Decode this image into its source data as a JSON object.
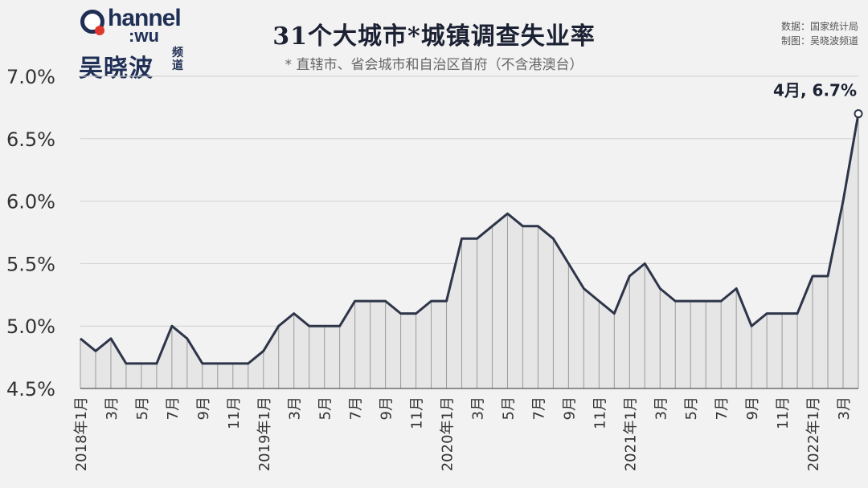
{
  "logo": {
    "wordmark": "hannel",
    "sub": ":wu",
    "cn": "吴晓波",
    "cn2": "频道"
  },
  "source": {
    "line1": "数据：国家统计局",
    "line2": "制图：吴晓波频道"
  },
  "colors": {
    "line": "#2e3549",
    "background": "#f2f2f2",
    "grid": "#d0d0d0",
    "logo_accent": "#e0362c"
  },
  "chart_data": {
    "type": "area",
    "title": "31个大城市*城镇调查失业率",
    "subtitle": "* 直辖市、省会城市和自治区首府（不含港澳台）",
    "ylim": [
      4.5,
      7.0
    ],
    "yticks": [
      4.5,
      5.0,
      5.5,
      6.0,
      6.5,
      7.0
    ],
    "ytick_labels": [
      "4.5%",
      "5.0%",
      "5.5%",
      "6.0%",
      "6.5%",
      "7.0%"
    ],
    "grid": "horizontal",
    "x": [
      "2018年1月",
      "2月",
      "3月",
      "4月",
      "5月",
      "6月",
      "7月",
      "8月",
      "9月",
      "10月",
      "11月",
      "12月",
      "2019年1月",
      "2月",
      "3月",
      "4月",
      "5月",
      "6月",
      "7月",
      "8月",
      "9月",
      "10月",
      "11月",
      "12月",
      "2020年1月",
      "2月",
      "3月",
      "4月",
      "5月",
      "6月",
      "7月",
      "8月",
      "9月",
      "10月",
      "11月",
      "12月",
      "2021年1月",
      "2月",
      "3月",
      "4月",
      "5月",
      "6月",
      "7月",
      "8月",
      "9月",
      "10月",
      "11月",
      "12月",
      "2022年1月",
      "2月",
      "3月",
      "4月"
    ],
    "xtick_labels": [
      "2018年1月",
      "",
      "3月",
      "",
      "5月",
      "",
      "7月",
      "",
      "9月",
      "",
      "11月",
      "",
      "2019年1月",
      "",
      "3月",
      "",
      "5月",
      "",
      "7月",
      "",
      "9月",
      "",
      "11月",
      "",
      "2020年1月",
      "",
      "3月",
      "",
      "5月",
      "",
      "7月",
      "",
      "9月",
      "",
      "11月",
      "",
      "2021年1月",
      "",
      "3月",
      "",
      "5月",
      "",
      "7月",
      "",
      "9月",
      "",
      "11月",
      "",
      "2022年1月",
      "",
      "3月",
      ""
    ],
    "series": [
      {
        "values": [
          4.9,
          4.8,
          4.9,
          4.7,
          4.7,
          4.7,
          5.0,
          4.9,
          4.7,
          4.7,
          4.7,
          4.7,
          4.8,
          5.0,
          5.1,
          5.0,
          5.0,
          5.0,
          5.2,
          5.2,
          5.2,
          5.1,
          5.1,
          5.2,
          5.2,
          5.7,
          5.7,
          5.8,
          5.9,
          5.8,
          5.8,
          5.7,
          5.5,
          5.3,
          5.2,
          5.1,
          5.4,
          5.5,
          5.3,
          5.2,
          5.2,
          5.2,
          5.2,
          5.3,
          5.0,
          5.1,
          5.1,
          5.1,
          5.4,
          5.4,
          6.0,
          6.7
        ]
      }
    ],
    "annotation": {
      "text": "4月, 6.7%",
      "index": 51
    }
  }
}
